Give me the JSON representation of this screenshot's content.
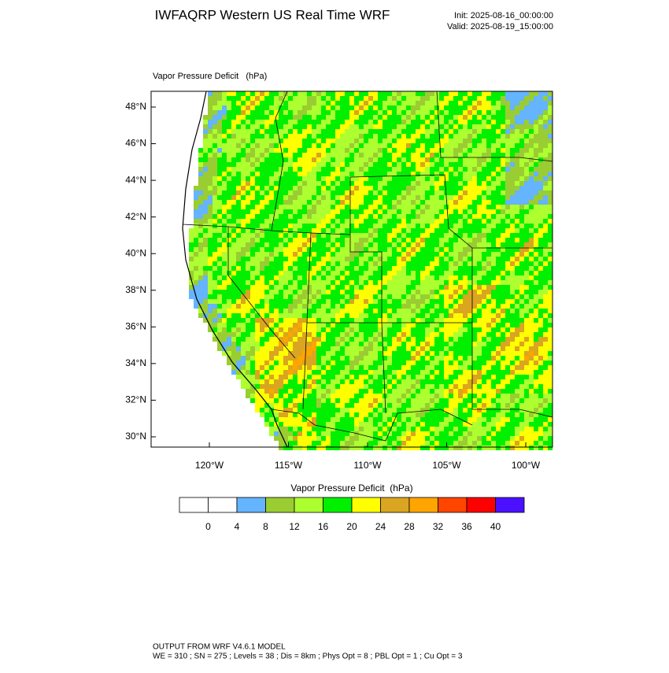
{
  "header": {
    "title": "IWFAQRP Western US Real Time WRF",
    "init": "Init: 2025-08-16_00:00:00",
    "valid": "Valid: 2025-08-19_15:00:00"
  },
  "map": {
    "label": "Vapor Pressure Deficit   (hPa)",
    "lat_ticks": [
      "48°N",
      "46°N",
      "44°N",
      "42°N",
      "40°N",
      "38°N",
      "36°N",
      "34°N",
      "32°N",
      "30°N"
    ],
    "lon_ticks": [
      "120°W",
      "115°W",
      "110°W",
      "105°W",
      "100°W"
    ]
  },
  "colorbar": {
    "title": "Vapor Pressure Deficit  (hPa)",
    "labels": [
      "0",
      "4",
      "8",
      "12",
      "16",
      "20",
      "24",
      "28",
      "32",
      "36",
      "40"
    ],
    "colors": [
      "#ffffff",
      "#ffffff",
      "#64b4ff",
      "#9acd32",
      "#adff2f",
      "#00f000",
      "#ffff00",
      "#daa520",
      "#ffa500",
      "#ff4500",
      "#ff0000",
      "#4a10ff"
    ]
  },
  "footer": {
    "line1": "OUTPUT FROM WRF V4.6.1 MODEL",
    "line2": "WE = 310 ; SN = 275 ; Levels = 38 ; Dis = 8km ; Phys Opt = 8 ; PBL Opt = 1 ; Cu Opt = 3"
  }
}
